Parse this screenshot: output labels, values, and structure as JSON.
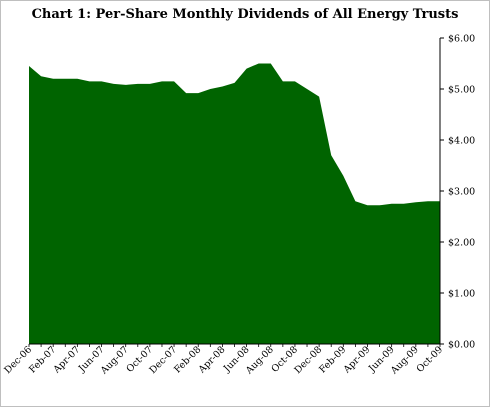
{
  "chart_data": {
    "type": "area",
    "title": "Chart 1: Per-Share Monthly Dividends of All Energy Trusts",
    "xlabel": "",
    "ylabel": "",
    "x": [
      "Dec-06",
      "Jan-07",
      "Feb-07",
      "Mar-07",
      "Apr-07",
      "May-07",
      "Jun-07",
      "Jul-07",
      "Aug-07",
      "Sep-07",
      "Oct-07",
      "Nov-07",
      "Dec-07",
      "Jan-08",
      "Feb-08",
      "Mar-08",
      "Apr-08",
      "May-08",
      "Jun-08",
      "Jul-08",
      "Aug-08",
      "Sep-08",
      "Oct-08",
      "Nov-08",
      "Dec-08",
      "Jan-09",
      "Feb-09",
      "Mar-09",
      "Apr-09",
      "May-09",
      "Jun-09",
      "Jul-09",
      "Aug-09",
      "Sep-09",
      "Oct-09"
    ],
    "x_tick_labels": [
      "Dec-06",
      "Feb-07",
      "Apr-07",
      "Jun-07",
      "Aug-07",
      "Oct-07",
      "Dec-07",
      "Feb-08",
      "Apr-08",
      "Jun-08",
      "Aug-08",
      "Oct-08",
      "Dec-08",
      "Feb-09",
      "Apr-09",
      "Jun-09",
      "Aug-09",
      "Oct-09"
    ],
    "series": [
      {
        "values": [
          5.45,
          5.25,
          5.2,
          5.2,
          5.2,
          5.15,
          5.15,
          5.1,
          5.08,
          5.1,
          5.1,
          5.15,
          5.15,
          4.92,
          4.92,
          5.0,
          5.05,
          5.12,
          5.4,
          5.5,
          5.5,
          5.15,
          5.15,
          5.0,
          4.85,
          3.7,
          3.3,
          2.8,
          2.72,
          2.72,
          2.75,
          2.75,
          2.78,
          2.8,
          2.8
        ],
        "color": "#006400"
      }
    ],
    "y_tick_labels": [
      "$0.00",
      "$1.00",
      "$2.00",
      "$3.00",
      "$4.00",
      "$5.00",
      "$6.00"
    ],
    "ylim": [
      0,
      6
    ],
    "y_axis_side": "right",
    "grid": false,
    "legend": "none"
  }
}
